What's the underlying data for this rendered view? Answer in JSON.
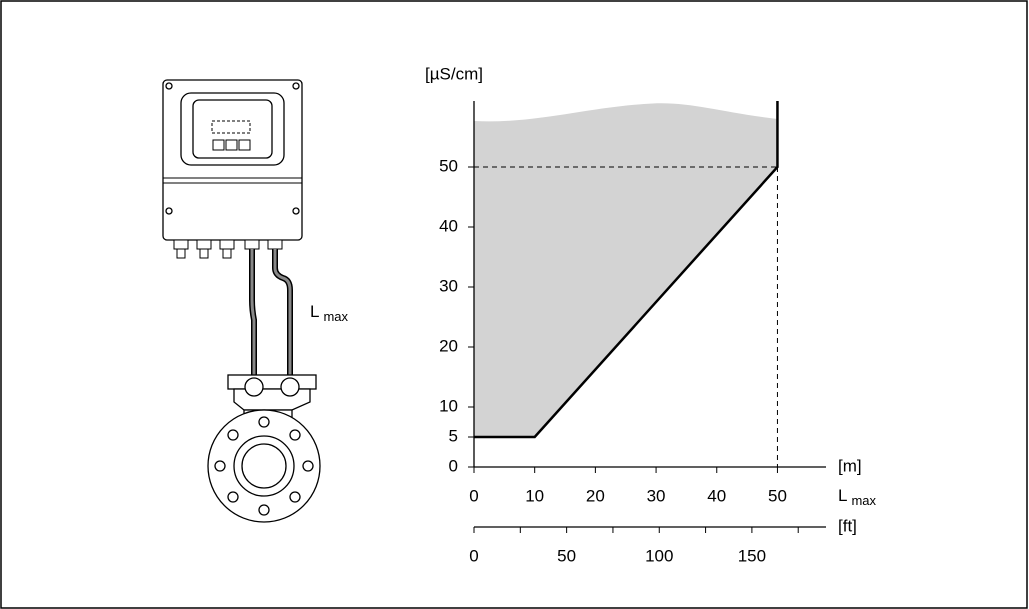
{
  "chart_data": {
    "type": "line",
    "y_label": "[µS/cm]",
    "x_unit": "[m]",
    "x_label": "L",
    "x_label_sub": "max",
    "x2_unit": "[ft]",
    "x": [
      0,
      10,
      50,
      50
    ],
    "values": [
      5,
      5,
      50,
      61
    ],
    "color": "#000000",
    "fill": "#d3d3d3",
    "ylim": [
      0,
      61
    ],
    "yticks": [
      0,
      5,
      10,
      20,
      30,
      40,
      50
    ],
    "xlim": [
      0,
      58
    ],
    "xticks": [
      0,
      10,
      20,
      30,
      40,
      50
    ],
    "x2lim": [
      0,
      190
    ],
    "x2ticks": [
      0,
      50,
      100,
      150
    ],
    "x2minor_ticks": [
      25,
      75,
      125,
      175
    ]
  },
  "diagram": {
    "label": "L",
    "label_sub": "max"
  }
}
